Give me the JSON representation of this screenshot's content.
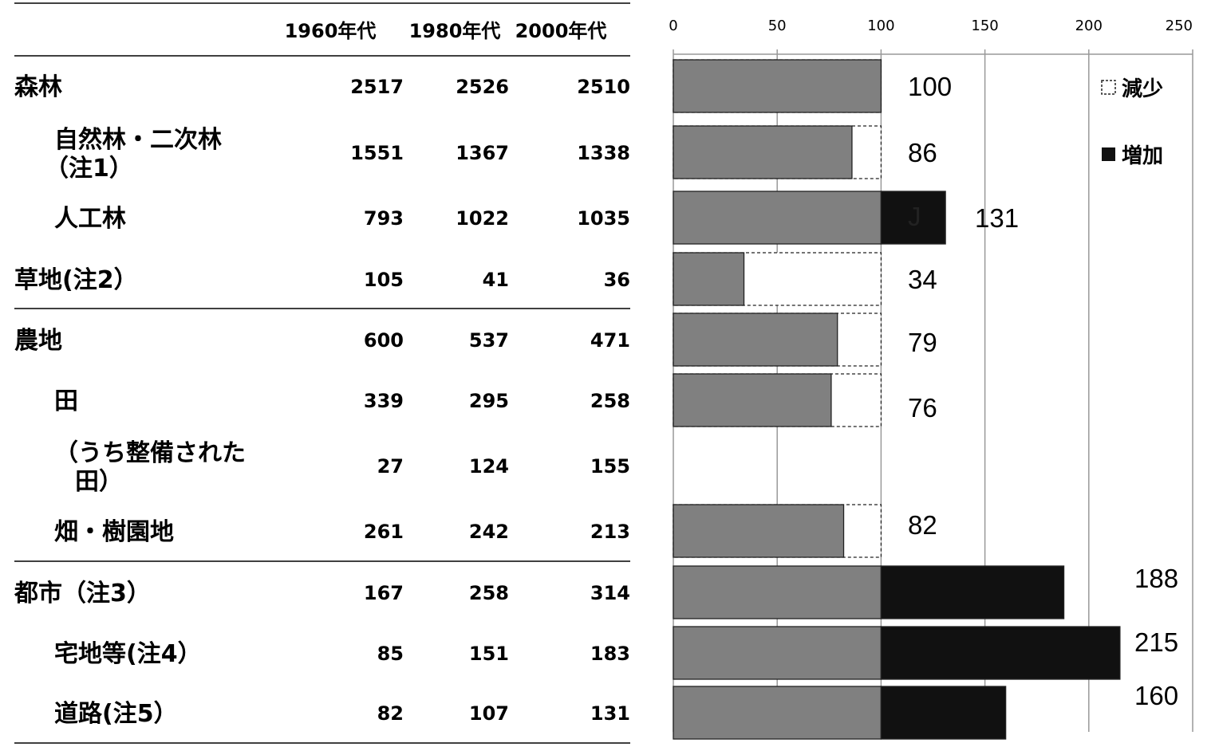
{
  "table": {
    "headers": [
      "1960年代",
      "1980年代",
      "2000年代"
    ],
    "rows": [
      {
        "label": "森林",
        "values": [
          "2517",
          "2526",
          "2510"
        ]
      },
      {
        "label": [
          "自然林・二次林",
          "（注1）"
        ],
        "values": [
          "1551",
          "1367",
          "1338"
        ]
      },
      {
        "label": "人工林",
        "values": [
          "793",
          "1022",
          "1035"
        ]
      },
      {
        "label": "草地(注2）",
        "values": [
          "105",
          "41",
          "36"
        ]
      },
      {
        "label": "農地",
        "values": [
          "600",
          "537",
          "471"
        ]
      },
      {
        "label": "田",
        "values": [
          "339",
          "295",
          "258"
        ]
      },
      {
        "label": [
          "（うち整備された",
          "田）"
        ],
        "values": [
          "27",
          "124",
          "155"
        ]
      },
      {
        "label": "畑・樹園地",
        "values": [
          "261",
          "242",
          "213"
        ]
      },
      {
        "label": "都市（注3）",
        "values": [
          "167",
          "258",
          "314"
        ]
      },
      {
        "label": "宅地等(注4）",
        "values": [
          "85",
          "151",
          "183"
        ]
      },
      {
        "label": "道路(注5）",
        "values": [
          "82",
          "107",
          "131"
        ]
      }
    ]
  },
  "chart_data": {
    "type": "bar",
    "orientation": "horizontal",
    "xlim": [
      0,
      250
    ],
    "xticks": [
      "0",
      "50",
      "100",
      "150",
      "200",
      "250"
    ],
    "grid": true,
    "categories": [
      "森林",
      "自然林・二次林（注1）",
      "人工林",
      "草地(注2）",
      "農地",
      "田",
      "（うち整備された田）",
      "畑・樹園地",
      "都市（注3）",
      "宅地等(注4）",
      "道路(注5）"
    ],
    "values": [
      100,
      86,
      131,
      null,
      79,
      76,
      null,
      82,
      188,
      215,
      160
    ],
    "display_values": [
      100,
      86,
      131,
      34,
      79,
      76,
      null,
      82,
      188,
      215,
      160
    ],
    "value_labels": [
      "100",
      "86",
      "131",
      "34",
      "79",
      "76",
      "",
      "82",
      "188",
      "215",
      "160"
    ],
    "bars": [
      100,
      86,
      131,
      34,
      79,
      76,
      null,
      82,
      188,
      215,
      160
    ],
    "stray_mark": "J",
    "legend": [
      {
        "name": "減少",
        "symbol": "□"
      },
      {
        "name": "増加",
        "symbol": "■"
      }
    ],
    "legend_position": "top-right",
    "colors": {
      "base": "#808080",
      "increase": "#111111",
      "decrease_border": "#222222",
      "grid": "#999999"
    }
  }
}
